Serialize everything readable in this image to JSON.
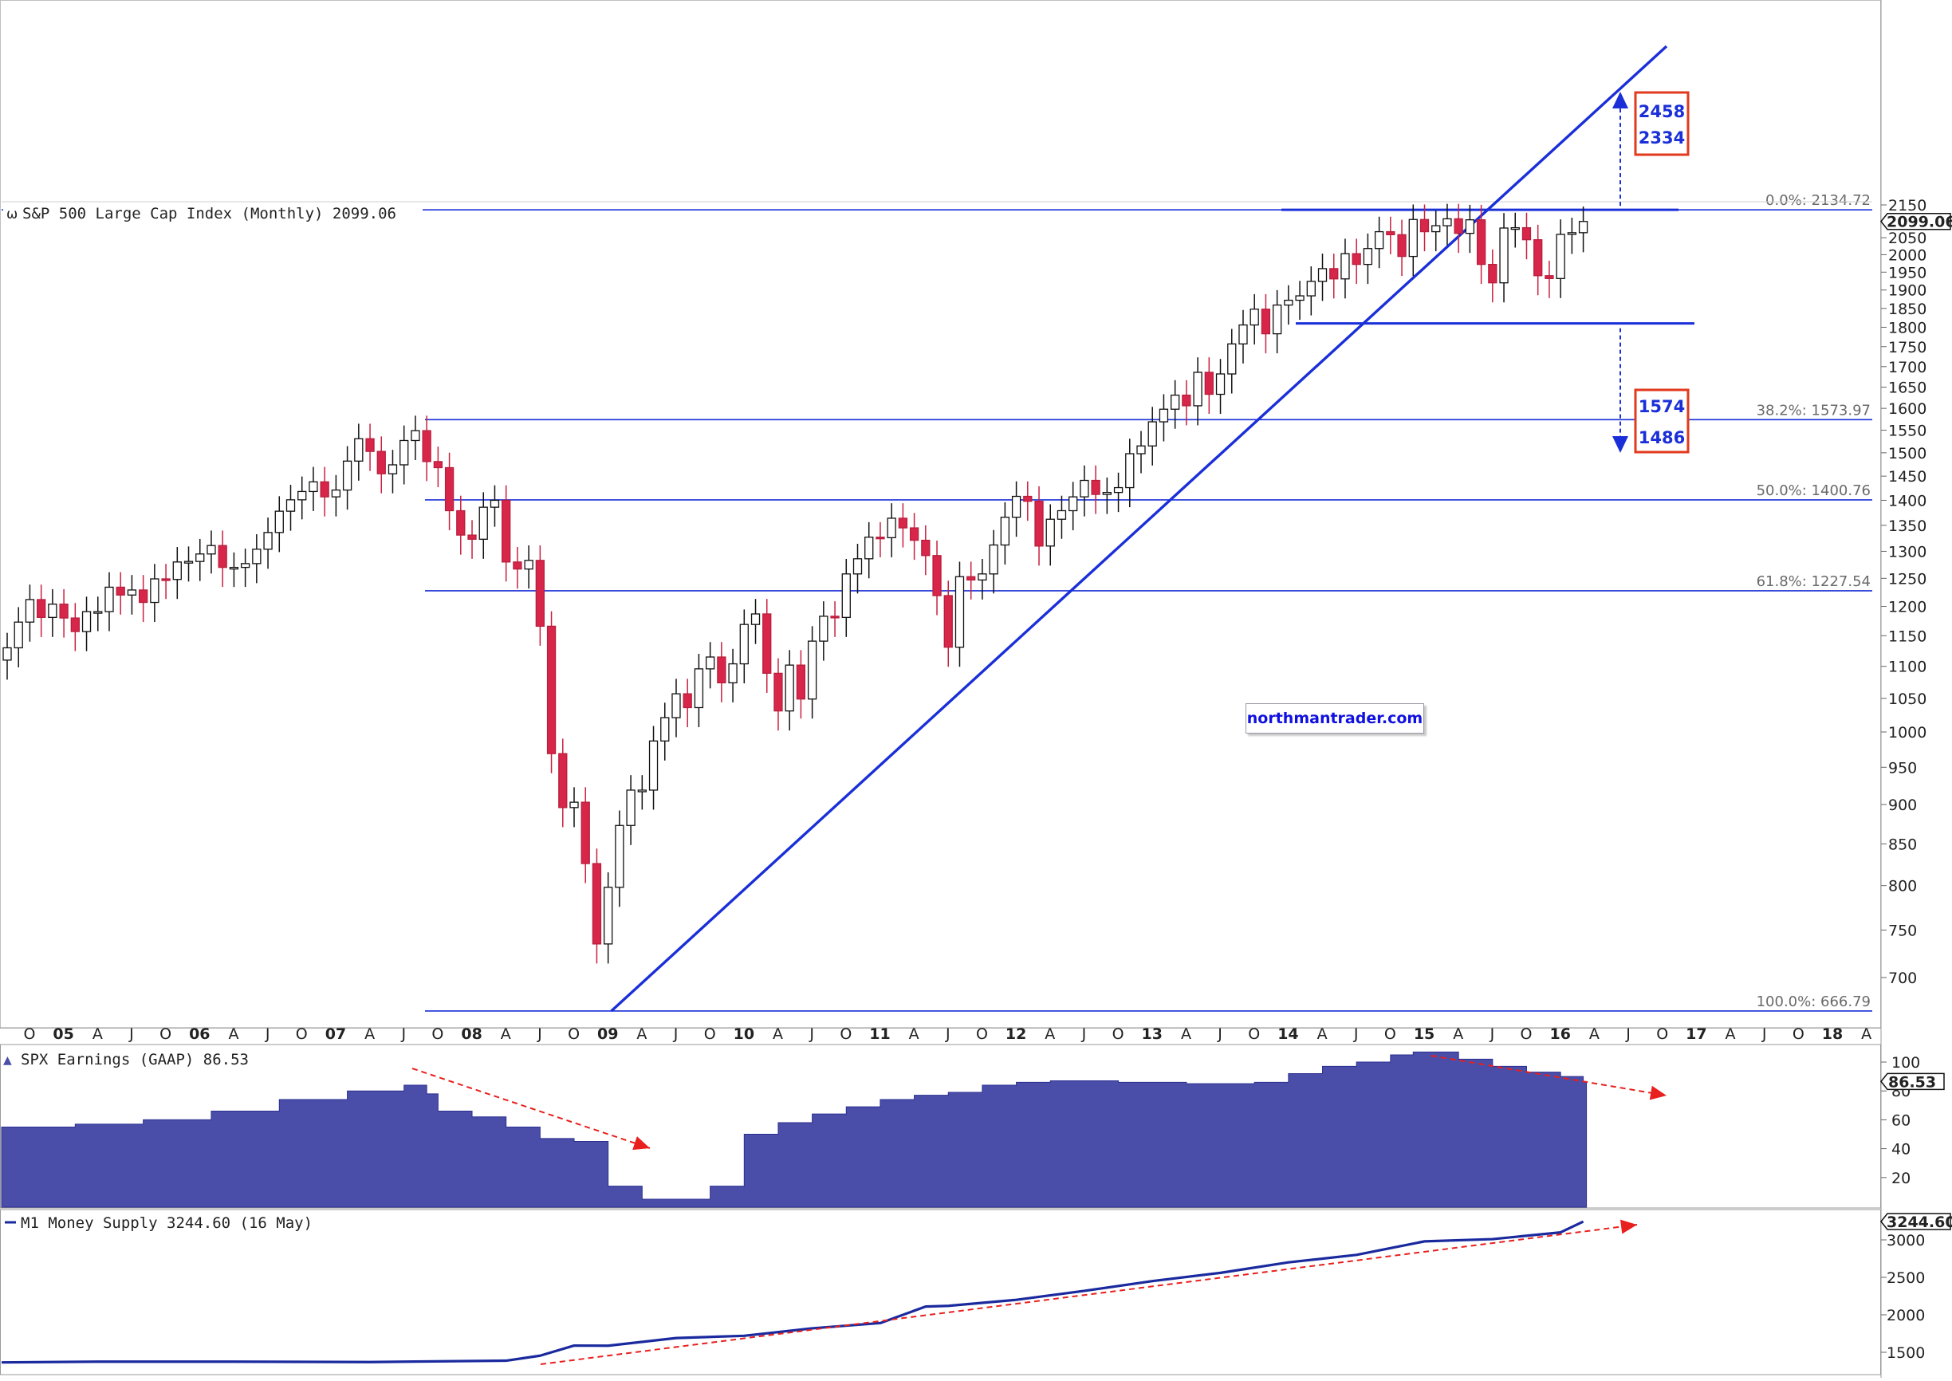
{
  "chart_data": [
    {
      "panel": "price",
      "type": "candlestick",
      "title": "S&P 500 Large Cap Index (Monthly) 2099.06",
      "last_value": "2099.06",
      "y_scale": "log",
      "ylim": [
        640,
        2200
      ],
      "y_ticks": [
        700,
        750,
        800,
        850,
        900,
        950,
        1000,
        1050,
        1100,
        1150,
        1200,
        1250,
        1300,
        1350,
        1400,
        1450,
        1500,
        1550,
        1600,
        1650,
        1700,
        1750,
        1800,
        1850,
        1900,
        1950,
        2000,
        2050,
        2100,
        2150
      ],
      "x_range": [
        "2004-10",
        "2018-05"
      ],
      "x_tick_labels": [
        "O",
        "05",
        "A",
        "J",
        "O",
        "06",
        "A",
        "J",
        "O",
        "07",
        "A",
        "J",
        "O",
        "08",
        "A",
        "J",
        "O",
        "09",
        "A",
        "J",
        "O",
        "10",
        "A",
        "J",
        "O",
        "11",
        "A",
        "J",
        "O",
        "12",
        "A",
        "J",
        "O",
        "13",
        "A",
        "J",
        "O",
        "14",
        "A",
        "J",
        "O",
        "15",
        "A",
        "J",
        "O",
        "16",
        "A",
        "J",
        "O",
        "17",
        "A",
        "J",
        "O",
        "18",
        "A"
      ],
      "candles_close": [
        [
          "2004-10",
          1130
        ],
        [
          "2004-11",
          1173
        ],
        [
          "2004-12",
          1212
        ],
        [
          "2005-01",
          1181
        ],
        [
          "2005-02",
          1204
        ],
        [
          "2005-03",
          1180
        ],
        [
          "2005-04",
          1157
        ],
        [
          "2005-05",
          1191
        ],
        [
          "2005-06",
          1191
        ],
        [
          "2005-07",
          1234
        ],
        [
          "2005-08",
          1220
        ],
        [
          "2005-09",
          1229
        ],
        [
          "2005-10",
          1207
        ],
        [
          "2005-11",
          1249
        ],
        [
          "2005-12",
          1248
        ],
        [
          "2006-01",
          1280
        ],
        [
          "2006-02",
          1281
        ],
        [
          "2006-03",
          1295
        ],
        [
          "2006-04",
          1311
        ],
        [
          "2006-05",
          1270
        ],
        [
          "2006-06",
          1270
        ],
        [
          "2006-07",
          1277
        ],
        [
          "2006-08",
          1304
        ],
        [
          "2006-09",
          1336
        ],
        [
          "2006-10",
          1378
        ],
        [
          "2006-11",
          1401
        ],
        [
          "2006-12",
          1418
        ],
        [
          "2007-01",
          1438
        ],
        [
          "2007-02",
          1407
        ],
        [
          "2007-03",
          1421
        ],
        [
          "2007-04",
          1482
        ],
        [
          "2007-05",
          1531
        ],
        [
          "2007-06",
          1503
        ],
        [
          "2007-07",
          1455
        ],
        [
          "2007-08",
          1474
        ],
        [
          "2007-09",
          1527
        ],
        [
          "2007-10",
          1549
        ],
        [
          "2007-11",
          1481
        ],
        [
          "2007-12",
          1468
        ],
        [
          "2008-01",
          1379
        ],
        [
          "2008-02",
          1331
        ],
        [
          "2008-03",
          1323
        ],
        [
          "2008-04",
          1386
        ],
        [
          "2008-05",
          1400
        ],
        [
          "2008-06",
          1280
        ],
        [
          "2008-07",
          1267
        ],
        [
          "2008-08",
          1283
        ],
        [
          "2008-09",
          1166
        ],
        [
          "2008-10",
          969
        ],
        [
          "2008-11",
          896
        ],
        [
          "2008-12",
          903
        ],
        [
          "2009-01",
          826
        ],
        [
          "2009-02",
          735
        ],
        [
          "2009-03",
          798
        ],
        [
          "2009-04",
          873
        ],
        [
          "2009-05",
          919
        ],
        [
          "2009-06",
          919
        ],
        [
          "2009-07",
          987
        ],
        [
          "2009-08",
          1021
        ],
        [
          "2009-09",
          1057
        ],
        [
          "2009-10",
          1036
        ],
        [
          "2009-11",
          1096
        ],
        [
          "2009-12",
          1115
        ],
        [
          "2010-01",
          1074
        ],
        [
          "2010-02",
          1104
        ],
        [
          "2010-03",
          1169
        ],
        [
          "2010-04",
          1187
        ],
        [
          "2010-05",
          1089
        ],
        [
          "2010-06",
          1031
        ],
        [
          "2010-07",
          1102
        ],
        [
          "2010-08",
          1049
        ],
        [
          "2010-09",
          1141
        ],
        [
          "2010-10",
          1183
        ],
        [
          "2010-11",
          1181
        ],
        [
          "2010-12",
          1258
        ],
        [
          "2011-01",
          1286
        ],
        [
          "2011-02",
          1327
        ],
        [
          "2011-03",
          1326
        ],
        [
          "2011-04",
          1364
        ],
        [
          "2011-05",
          1345
        ],
        [
          "2011-06",
          1321
        ],
        [
          "2011-07",
          1292
        ],
        [
          "2011-08",
          1219
        ],
        [
          "2011-09",
          1131
        ],
        [
          "2011-10",
          1253
        ],
        [
          "2011-11",
          1247
        ],
        [
          "2011-12",
          1258
        ],
        [
          "2012-01",
          1312
        ],
        [
          "2012-02",
          1366
        ],
        [
          "2012-03",
          1408
        ],
        [
          "2012-04",
          1398
        ],
        [
          "2012-05",
          1310
        ],
        [
          "2012-06",
          1362
        ],
        [
          "2012-07",
          1379
        ],
        [
          "2012-08",
          1407
        ],
        [
          "2012-09",
          1441
        ],
        [
          "2012-10",
          1412
        ],
        [
          "2012-11",
          1416
        ],
        [
          "2012-12",
          1426
        ],
        [
          "2013-01",
          1498
        ],
        [
          "2013-02",
          1515
        ],
        [
          "2013-03",
          1569
        ],
        [
          "2013-04",
          1598
        ],
        [
          "2013-05",
          1631
        ],
        [
          "2013-06",
          1606
        ],
        [
          "2013-07",
          1686
        ],
        [
          "2013-08",
          1633
        ],
        [
          "2013-09",
          1682
        ],
        [
          "2013-10",
          1757
        ],
        [
          "2013-11",
          1806
        ],
        [
          "2013-12",
          1848
        ],
        [
          "2014-01",
          1783
        ],
        [
          "2014-02",
          1859
        ],
        [
          "2014-03",
          1872
        ],
        [
          "2014-04",
          1884
        ],
        [
          "2014-05",
          1924
        ],
        [
          "2014-06",
          1960
        ],
        [
          "2014-07",
          1931
        ],
        [
          "2014-08",
          2003
        ],
        [
          "2014-09",
          1972
        ],
        [
          "2014-10",
          2018
        ],
        [
          "2014-11",
          2068
        ],
        [
          "2014-12",
          2059
        ],
        [
          "2015-01",
          1995
        ],
        [
          "2015-02",
          2105
        ],
        [
          "2015-03",
          2068
        ],
        [
          "2015-04",
          2086
        ],
        [
          "2015-05",
          2107
        ],
        [
          "2015-06",
          2063
        ],
        [
          "2015-07",
          2104
        ],
        [
          "2015-08",
          1972
        ],
        [
          "2015-09",
          1920
        ],
        [
          "2015-10",
          2079
        ],
        [
          "2015-11",
          2080
        ],
        [
          "2015-12",
          2044
        ],
        [
          "2016-01",
          1940
        ],
        [
          "2016-02",
          1932
        ],
        [
          "2016-03",
          2060
        ],
        [
          "2016-04",
          2065
        ],
        [
          "2016-05",
          2099
        ]
      ],
      "horizontal_levels": [
        {
          "label": "0.0%: 2134.72",
          "value": 2134.72
        },
        {
          "label": "38.2%: 1573.97",
          "value": 1573.97
        },
        {
          "label": "50.0%: 1400.76",
          "value": 1400.76
        },
        {
          "label": "61.8%: 1227.54",
          "value": 1227.54
        },
        {
          "label": "100.0%: 666.79",
          "value": 666.79
        }
      ],
      "range_lines": [
        2134.72,
        1810
      ],
      "trendline": [
        [
          "2009-03",
          666.79
        ],
        [
          "2018-05",
          2520
        ]
      ],
      "annotations": {
        "upper_targets": [
          "2458",
          "2334"
        ],
        "lower_targets": [
          "1574",
          "1486"
        ],
        "watermark": "northmantrader.com"
      },
      "colors": {
        "up": "#ffffff",
        "down": "#d8264a",
        "outline": "#111111",
        "lines": "#1a2fd8",
        "arrow": "#1a2fd8",
        "box": "#e23a1e"
      }
    },
    {
      "panel": "earnings",
      "type": "area",
      "title": "SPX Earnings (GAAP) 86.53",
      "last_value": "86.53",
      "ylim": [
        0,
        110
      ],
      "y_ticks": [
        20,
        40,
        60,
        80,
        100
      ],
      "color": "#4a4ea8",
      "trend_arrows": [
        {
          "from": [
            "2007-09",
            97
          ],
          "to": [
            "2009-02",
            43
          ]
        },
        {
          "from": [
            "2015-02",
            107
          ],
          "to": [
            "2016-10",
            85
          ]
        }
      ],
      "x": [
        "2004-10",
        "2005-04",
        "2005-10",
        "2006-04",
        "2006-10",
        "2007-04",
        "2007-09",
        "2007-11",
        "2007-12",
        "2008-03",
        "2008-06",
        "2008-09",
        "2008-12",
        "2009-03",
        "2009-06",
        "2009-09",
        "2009-12",
        "2010-03",
        "2010-06",
        "2010-09",
        "2010-12",
        "2011-03",
        "2011-06",
        "2011-09",
        "2011-12",
        "2012-03",
        "2012-06",
        "2012-12",
        "2013-06",
        "2013-12",
        "2014-03",
        "2014-06",
        "2014-09",
        "2014-12",
        "2015-02",
        "2015-06",
        "2015-09",
        "2015-12",
        "2016-03",
        "2016-05"
      ],
      "values": [
        55,
        57,
        60,
        66,
        74,
        80,
        84,
        78,
        66,
        62,
        55,
        47,
        45,
        14,
        5,
        5,
        14,
        50,
        58,
        64,
        69,
        74,
        77,
        79,
        84,
        86,
        87,
        86,
        85,
        86,
        92,
        97,
        100,
        105,
        107,
        102,
        97,
        93,
        90,
        86.53
      ]
    },
    {
      "panel": "money_supply",
      "type": "line",
      "title": "M1 Money Supply 3244.60 (16 May)",
      "last_value": "3244.60",
      "ylim": [
        1300,
        3300
      ],
      "y_ticks": [
        1500,
        2000,
        2500,
        3000
      ],
      "color": "#1a2a9e",
      "trend_arrow": {
        "from": [
          "2008-06",
          1330
        ],
        "to": [
          "2016-11",
          3230
        ]
      },
      "x": [
        "2004-10",
        "2005-06",
        "2006-06",
        "2007-06",
        "2008-06",
        "2008-09",
        "2008-12",
        "2009-03",
        "2009-09",
        "2010-03",
        "2010-09",
        "2011-03",
        "2011-07",
        "2011-09",
        "2012-03",
        "2012-09",
        "2013-03",
        "2013-09",
        "2014-03",
        "2014-09",
        "2015-03",
        "2015-09",
        "2016-03",
        "2016-05"
      ],
      "values": [
        1365,
        1375,
        1375,
        1370,
        1388,
        1455,
        1590,
        1588,
        1690,
        1720,
        1820,
        1890,
        2110,
        2120,
        2200,
        2320,
        2450,
        2560,
        2700,
        2800,
        2980,
        3010,
        3100,
        3244.6
      ]
    }
  ]
}
